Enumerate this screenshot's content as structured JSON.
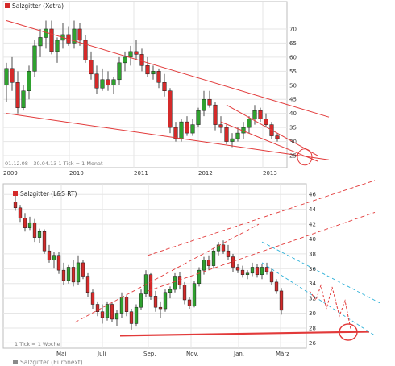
{
  "colors": {
    "up": "#2fa12f",
    "down": "#d42a2a",
    "trend": "#e23a3a",
    "channel": "#2cb0d8",
    "grid": "#e6e6e6"
  },
  "chart_data": [
    {
      "type": "candlestick",
      "title": "Salzgitter (Xetra)",
      "footer": "01.12.08 - 30.04.13   1 Tick = 1 Monat",
      "x_tick_labels": [
        "2009",
        "2010",
        "2011",
        "2012",
        "2013"
      ],
      "y_tick_labels": [
        "25",
        "30",
        "35",
        "40",
        "45",
        "50",
        "55",
        "60",
        "65",
        "70"
      ],
      "ylim": [
        23,
        74
      ],
      "period": "monthly",
      "candles": [
        {
          "o": 50,
          "h": 58,
          "l": 44,
          "c": 56
        },
        {
          "o": 56,
          "h": 60,
          "l": 48,
          "c": 51
        },
        {
          "o": 51,
          "h": 55,
          "l": 40,
          "c": 42
        },
        {
          "o": 42,
          "h": 50,
          "l": 41,
          "c": 48
        },
        {
          "o": 48,
          "h": 57,
          "l": 45,
          "c": 55
        },
        {
          "o": 55,
          "h": 66,
          "l": 53,
          "c": 64
        },
        {
          "o": 64,
          "h": 70,
          "l": 60,
          "c": 67
        },
        {
          "o": 67,
          "h": 73,
          "l": 63,
          "c": 70
        },
        {
          "o": 70,
          "h": 73,
          "l": 61,
          "c": 62
        },
        {
          "o": 62,
          "h": 67,
          "l": 58,
          "c": 66
        },
        {
          "o": 66,
          "h": 72,
          "l": 63,
          "c": 68
        },
        {
          "o": 68,
          "h": 71,
          "l": 64,
          "c": 65
        },
        {
          "o": 65,
          "h": 73,
          "l": 63,
          "c": 70
        },
        {
          "o": 70,
          "h": 72,
          "l": 64,
          "c": 66
        },
        {
          "o": 66,
          "h": 68,
          "l": 58,
          "c": 59
        },
        {
          "o": 59,
          "h": 62,
          "l": 52,
          "c": 54
        },
        {
          "o": 54,
          "h": 57,
          "l": 47,
          "c": 49
        },
        {
          "o": 49,
          "h": 56,
          "l": 48,
          "c": 52
        },
        {
          "o": 52,
          "h": 55,
          "l": 48,
          "c": 50
        },
        {
          "o": 50,
          "h": 53,
          "l": 47,
          "c": 52
        },
        {
          "o": 52,
          "h": 60,
          "l": 50,
          "c": 58
        },
        {
          "o": 58,
          "h": 62,
          "l": 55,
          "c": 60
        },
        {
          "o": 60,
          "h": 64,
          "l": 57,
          "c": 62
        },
        {
          "o": 62,
          "h": 66,
          "l": 59,
          "c": 61
        },
        {
          "o": 61,
          "h": 63,
          "l": 55,
          "c": 57
        },
        {
          "o": 57,
          "h": 60,
          "l": 53,
          "c": 54
        },
        {
          "o": 54,
          "h": 57,
          "l": 52,
          "c": 55
        },
        {
          "o": 55,
          "h": 56,
          "l": 49,
          "c": 51
        },
        {
          "o": 51,
          "h": 54,
          "l": 46,
          "c": 48
        },
        {
          "o": 48,
          "h": 49,
          "l": 33,
          "c": 35
        },
        {
          "o": 35,
          "h": 37,
          "l": 30,
          "c": 31
        },
        {
          "o": 31,
          "h": 38,
          "l": 30,
          "c": 37
        },
        {
          "o": 37,
          "h": 39,
          "l": 32,
          "c": 33
        },
        {
          "o": 33,
          "h": 38,
          "l": 32,
          "c": 36
        },
        {
          "o": 36,
          "h": 42,
          "l": 35,
          "c": 41
        },
        {
          "o": 41,
          "h": 48,
          "l": 39,
          "c": 45
        },
        {
          "o": 45,
          "h": 48,
          "l": 42,
          "c": 43
        },
        {
          "o": 43,
          "h": 44,
          "l": 34,
          "c": 36
        },
        {
          "o": 36,
          "h": 39,
          "l": 33,
          "c": 35
        },
        {
          "o": 35,
          "h": 36,
          "l": 29,
          "c": 30
        },
        {
          "o": 30,
          "h": 33,
          "l": 28,
          "c": 31
        },
        {
          "o": 31,
          "h": 35,
          "l": 30,
          "c": 33
        },
        {
          "o": 33,
          "h": 37,
          "l": 31,
          "c": 35
        },
        {
          "o": 35,
          "h": 39,
          "l": 33,
          "c": 38
        },
        {
          "o": 38,
          "h": 43,
          "l": 36,
          "c": 41
        },
        {
          "o": 41,
          "h": 42,
          "l": 37,
          "c": 38
        },
        {
          "o": 38,
          "h": 40,
          "l": 35,
          "c": 36
        },
        {
          "o": 36,
          "h": 37,
          "l": 31,
          "c": 32
        },
        {
          "o": 32,
          "h": 33,
          "l": 30,
          "c": 31
        }
      ],
      "annotations": [
        {
          "kind": "trendline",
          "label": "upper",
          "from": [
            0,
            73
          ],
          "to": [
            48,
            41
          ]
        },
        {
          "kind": "trendline",
          "label": "lower",
          "from": [
            0,
            40
          ],
          "to": [
            48,
            23.5
          ]
        },
        {
          "kind": "trendline",
          "label": "short-term upper",
          "from": [
            39,
            43
          ],
          "to": [
            46,
            25
          ]
        },
        {
          "kind": "trendline",
          "label": "short-term lower",
          "from": [
            38,
            37
          ],
          "to": [
            46,
            23
          ]
        },
        {
          "kind": "circle",
          "at": [
            46,
            24.5
          ]
        }
      ]
    },
    {
      "type": "candlestick",
      "title": "Salzgitter (L&S RT)",
      "footer": "1 Tick = 1 Woche",
      "x_tick_labels": [
        "Mai",
        "Juli",
        "Sep.",
        "Nov.",
        "Jan.",
        "März"
      ],
      "y_tick_labels": [
        "26",
        "28",
        "30",
        "32",
        "34",
        "36",
        "38",
        "40",
        "42",
        "44",
        "46"
      ],
      "ylim": [
        25.5,
        47
      ],
      "period": "weekly",
      "candles": [
        {
          "o": 45.0,
          "h": 45.8,
          "l": 43.8,
          "c": 44.2
        },
        {
          "o": 44.2,
          "h": 44.6,
          "l": 42.3,
          "c": 42.8
        },
        {
          "o": 42.8,
          "h": 43.5,
          "l": 41.0,
          "c": 41.5
        },
        {
          "o": 41.5,
          "h": 43.0,
          "l": 41.2,
          "c": 42.2
        },
        {
          "o": 42.2,
          "h": 42.7,
          "l": 39.6,
          "c": 40.2
        },
        {
          "o": 40.2,
          "h": 41.4,
          "l": 39.5,
          "c": 41.0
        },
        {
          "o": 41.0,
          "h": 41.3,
          "l": 38.0,
          "c": 38.4
        },
        {
          "o": 38.4,
          "h": 39.2,
          "l": 36.8,
          "c": 37.2
        },
        {
          "o": 37.2,
          "h": 38.2,
          "l": 36.0,
          "c": 37.8
        },
        {
          "o": 37.8,
          "h": 38.3,
          "l": 35.3,
          "c": 35.8
        },
        {
          "o": 35.8,
          "h": 36.8,
          "l": 33.8,
          "c": 34.4
        },
        {
          "o": 34.4,
          "h": 36.5,
          "l": 34.0,
          "c": 36.2
        },
        {
          "o": 36.2,
          "h": 37.2,
          "l": 33.6,
          "c": 34.2
        },
        {
          "o": 34.2,
          "h": 37.8,
          "l": 33.8,
          "c": 36.8
        },
        {
          "o": 36.8,
          "h": 37.2,
          "l": 34.6,
          "c": 35.0
        },
        {
          "o": 35.0,
          "h": 35.4,
          "l": 32.2,
          "c": 32.8
        },
        {
          "o": 32.8,
          "h": 33.2,
          "l": 30.6,
          "c": 31.2
        },
        {
          "o": 31.2,
          "h": 31.6,
          "l": 29.6,
          "c": 30.2
        },
        {
          "o": 30.2,
          "h": 31.2,
          "l": 28.6,
          "c": 29.4
        },
        {
          "o": 29.4,
          "h": 31.6,
          "l": 29.0,
          "c": 31.2
        },
        {
          "o": 31.2,
          "h": 31.4,
          "l": 28.8,
          "c": 29.2
        },
        {
          "o": 29.2,
          "h": 30.4,
          "l": 28.3,
          "c": 30.0
        },
        {
          "o": 30.0,
          "h": 32.8,
          "l": 29.4,
          "c": 32.2
        },
        {
          "o": 32.2,
          "h": 32.4,
          "l": 29.6,
          "c": 30.2
        },
        {
          "o": 30.2,
          "h": 30.6,
          "l": 27.8,
          "c": 28.6
        },
        {
          "o": 28.6,
          "h": 31.2,
          "l": 28.2,
          "c": 30.8
        },
        {
          "o": 30.8,
          "h": 33.2,
          "l": 30.4,
          "c": 32.6
        },
        {
          "o": 32.6,
          "h": 35.8,
          "l": 32.2,
          "c": 35.2
        },
        {
          "o": 35.2,
          "h": 35.4,
          "l": 31.8,
          "c": 32.3
        },
        {
          "o": 32.3,
          "h": 33.0,
          "l": 30.2,
          "c": 30.8
        },
        {
          "o": 30.8,
          "h": 31.6,
          "l": 29.4,
          "c": 30.6
        },
        {
          "o": 30.6,
          "h": 33.2,
          "l": 30.2,
          "c": 32.8
        },
        {
          "o": 32.8,
          "h": 33.6,
          "l": 32.0,
          "c": 33.2
        },
        {
          "o": 33.2,
          "h": 35.4,
          "l": 32.8,
          "c": 35.0
        },
        {
          "o": 35.0,
          "h": 35.6,
          "l": 33.2,
          "c": 33.8
        },
        {
          "o": 33.8,
          "h": 34.2,
          "l": 31.2,
          "c": 31.8
        },
        {
          "o": 31.8,
          "h": 32.2,
          "l": 30.6,
          "c": 31.0
        },
        {
          "o": 31.0,
          "h": 34.4,
          "l": 30.8,
          "c": 34.0
        },
        {
          "o": 34.0,
          "h": 36.2,
          "l": 33.6,
          "c": 35.8
        },
        {
          "o": 35.8,
          "h": 37.6,
          "l": 35.2,
          "c": 37.2
        },
        {
          "o": 37.2,
          "h": 37.8,
          "l": 35.8,
          "c": 36.4
        },
        {
          "o": 36.4,
          "h": 38.8,
          "l": 36.0,
          "c": 38.4
        },
        {
          "o": 38.4,
          "h": 39.6,
          "l": 37.8,
          "c": 39.2
        },
        {
          "o": 39.2,
          "h": 39.8,
          "l": 38.0,
          "c": 38.4
        },
        {
          "o": 38.4,
          "h": 39.2,
          "l": 37.2,
          "c": 37.6
        },
        {
          "o": 37.6,
          "h": 38.0,
          "l": 35.6,
          "c": 36.2
        },
        {
          "o": 36.2,
          "h": 36.6,
          "l": 35.4,
          "c": 35.8
        },
        {
          "o": 35.8,
          "h": 36.4,
          "l": 34.8,
          "c": 35.2
        },
        {
          "o": 35.2,
          "h": 35.8,
          "l": 34.6,
          "c": 35.4
        },
        {
          "o": 35.4,
          "h": 36.8,
          "l": 35.0,
          "c": 36.2
        },
        {
          "o": 36.2,
          "h": 36.6,
          "l": 34.8,
          "c": 35.2
        },
        {
          "o": 35.2,
          "h": 36.6,
          "l": 34.6,
          "c": 36.2
        },
        {
          "o": 36.2,
          "h": 36.8,
          "l": 35.2,
          "c": 35.6
        },
        {
          "o": 35.6,
          "h": 36.0,
          "l": 33.8,
          "c": 34.2
        },
        {
          "o": 34.2,
          "h": 34.6,
          "l": 32.6,
          "c": 33.0
        },
        {
          "o": 33.0,
          "h": 33.4,
          "l": 29.8,
          "c": 30.4
        }
      ],
      "annotations": [
        {
          "kind": "channel",
          "label": "upper dashed",
          "from": [
            19,
            35.6
          ],
          "to": [
            61,
            45.5
          ]
        },
        {
          "kind": "channel",
          "label": "lower dashed",
          "from": [
            4,
            26.6
          ],
          "to": [
            37,
            39.6
          ]
        },
        {
          "kind": "channel",
          "label": "middle dashed",
          "from": [
            19,
            30.8
          ],
          "to": [
            61,
            41.2
          ]
        },
        {
          "kind": "support",
          "label": "horizontal",
          "from": [
            17,
            27.2
          ],
          "to": [
            63,
            27.4
          ]
        },
        {
          "kind": "channel-blue",
          "label": "upper",
          "from": [
            41,
            39.6
          ],
          "to": [
            61,
            31.4
          ]
        },
        {
          "kind": "channel-blue",
          "label": "lower",
          "from": [
            41,
            36.8
          ],
          "to": [
            60,
            27.0
          ]
        },
        {
          "kind": "projection",
          "label": "zigzag"
        },
        {
          "kind": "circle",
          "at": [
            59,
            27.4
          ]
        }
      ]
    },
    {
      "type": "legend-strip",
      "title": "Salzgitter (Euronext)"
    }
  ]
}
